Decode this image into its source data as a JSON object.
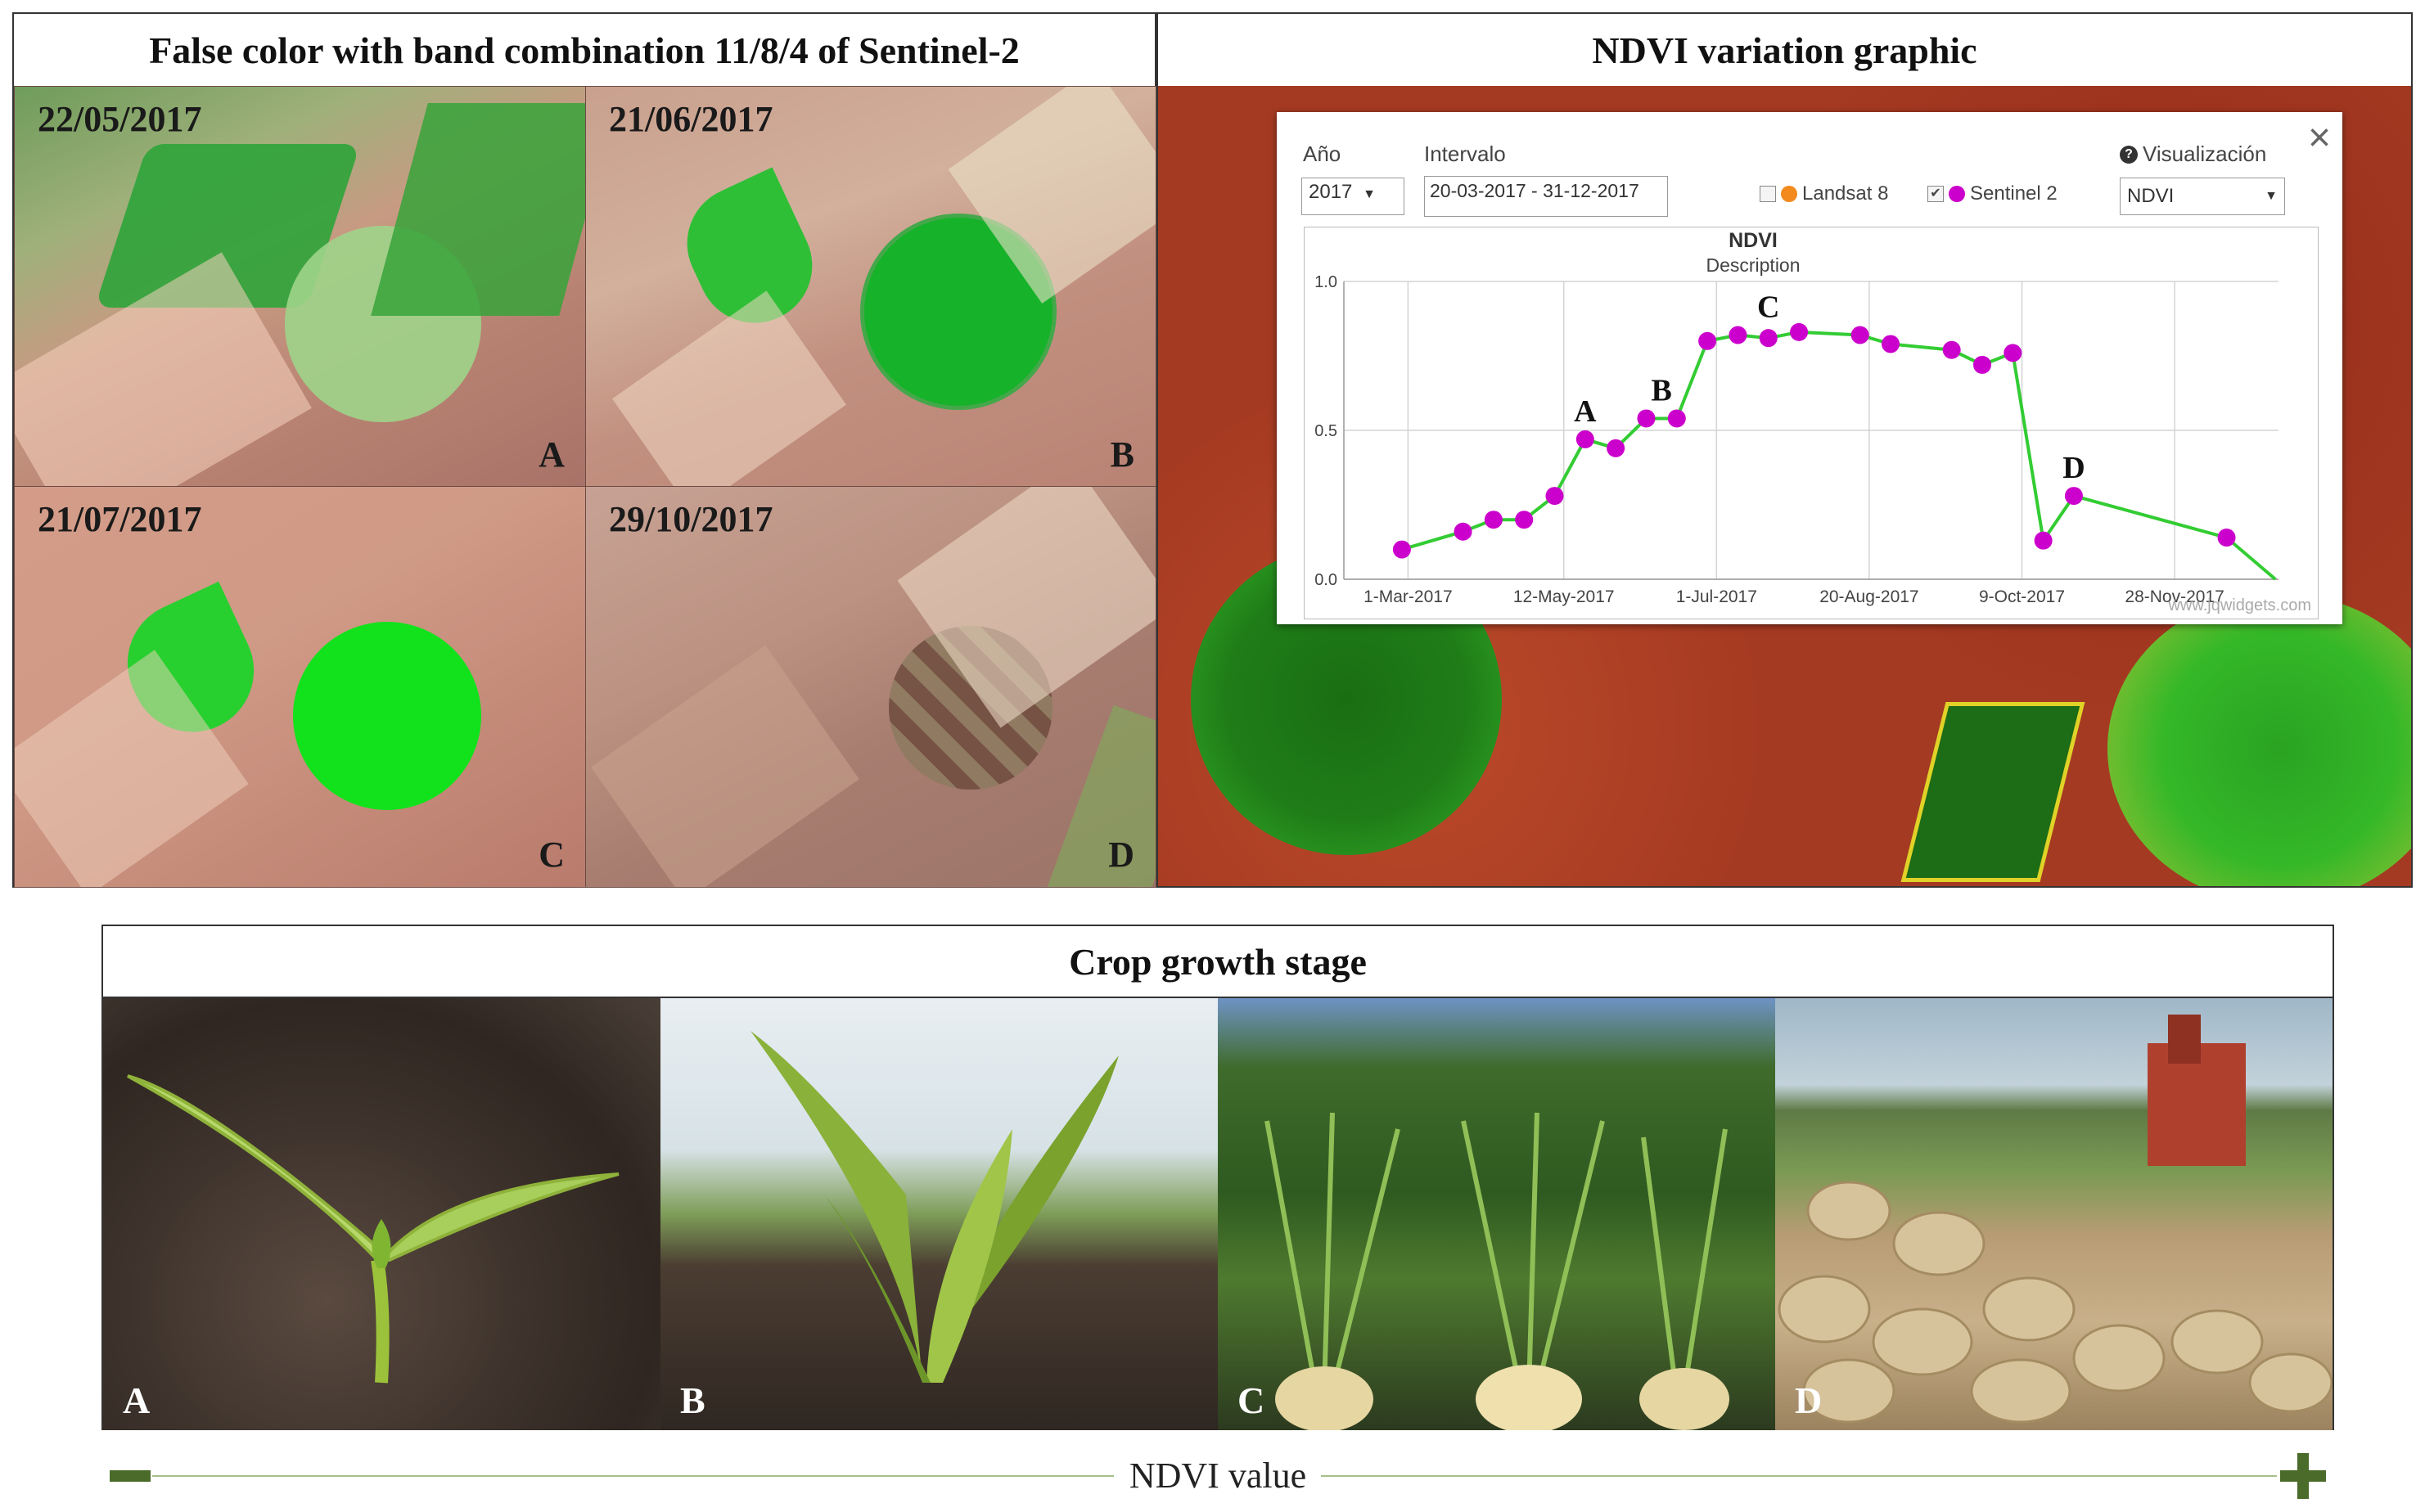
{
  "left_panel": {
    "title": "False color with band combination 11/8/4 of Sentinel-2",
    "images": [
      {
        "date": "22/05/2017",
        "letter": "A"
      },
      {
        "date": "21/06/2017",
        "letter": "B"
      },
      {
        "date": "21/07/2017",
        "letter": "C"
      },
      {
        "date": "29/10/2017",
        "letter": "D"
      }
    ]
  },
  "right_panel": {
    "title": "NDVI variation graphic",
    "popup": {
      "year_label": "Año",
      "year_value": "2017",
      "interval_label": "Intervalo",
      "interval_value": "20-03-2017 - 31-12-2017",
      "landsat_label": "Landsat 8",
      "sentinel_label": "Sentinel 2",
      "visual_label": "Visualización",
      "visual_value": "NDVI",
      "close": "×",
      "watermark": "www.jqwidgets.com"
    }
  },
  "chart_data": {
    "type": "line",
    "title": "NDVI",
    "subtitle": "Description",
    "x_tick_labels": [
      "1-Mar-2017",
      "12-May-2017",
      "1-Jul-2017",
      "20-Aug-2017",
      "9-Oct-2017",
      "28-Nov-2017"
    ],
    "y_tick_labels": [
      "0.0",
      "0.5",
      "1.0"
    ],
    "ylim": [
      0,
      1
    ],
    "xlim": [
      "2017-03-01",
      "2018-01-01"
    ],
    "grid": true,
    "series": [
      {
        "color": "#33cc33",
        "marker_color": "#cc00cc",
        "points": [
          {
            "x": "2017-03-20",
            "y": 0.1
          },
          {
            "x": "2017-04-09",
            "y": 0.16
          },
          {
            "x": "2017-04-19",
            "y": 0.2
          },
          {
            "x": "2017-04-29",
            "y": 0.2
          },
          {
            "x": "2017-05-09",
            "y": 0.28
          },
          {
            "x": "2017-05-19",
            "y": 0.47
          },
          {
            "x": "2017-05-29",
            "y": 0.44
          },
          {
            "x": "2017-06-08",
            "y": 0.54
          },
          {
            "x": "2017-06-18",
            "y": 0.54
          },
          {
            "x": "2017-06-28",
            "y": 0.8
          },
          {
            "x": "2017-07-08",
            "y": 0.82
          },
          {
            "x": "2017-07-18",
            "y": 0.81
          },
          {
            "x": "2017-07-28",
            "y": 0.83
          },
          {
            "x": "2017-08-17",
            "y": 0.82
          },
          {
            "x": "2017-08-27",
            "y": 0.79
          },
          {
            "x": "2017-09-16",
            "y": 0.77
          },
          {
            "x": "2017-09-26",
            "y": 0.72
          },
          {
            "x": "2017-10-06",
            "y": 0.76
          },
          {
            "x": "2017-10-16",
            "y": 0.13
          },
          {
            "x": "2017-10-26",
            "y": 0.28
          },
          {
            "x": "2017-12-15",
            "y": 0.14
          },
          {
            "x": "2017-12-31",
            "y": 0.0
          }
        ]
      }
    ],
    "annotations": [
      {
        "text": "A",
        "x": "2017-05-19",
        "y": 0.47
      },
      {
        "text": "B",
        "x": "2017-06-13",
        "y": 0.54
      },
      {
        "text": "C",
        "x": "2017-07-18",
        "y": 0.82
      },
      {
        "text": "D",
        "x": "2017-10-26",
        "y": 0.28
      }
    ]
  },
  "bottom_panel": {
    "title": "Crop growth stage",
    "stages": [
      "A",
      "B",
      "C",
      "D"
    ],
    "axis_label": "NDVI value"
  },
  "colors": {
    "chart_line": "#33cc33",
    "chart_marker": "#cc00cc",
    "ndvi_axis": "#4a6b2a",
    "ndvi_background": "#a53a22"
  }
}
